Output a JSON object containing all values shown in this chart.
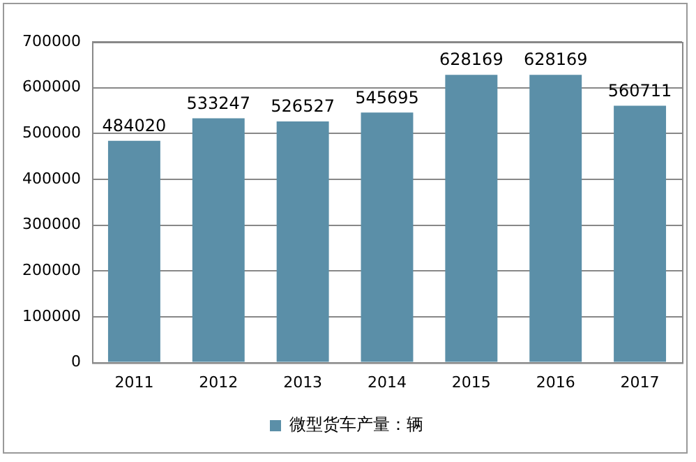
{
  "chart_data": {
    "type": "bar",
    "categories": [
      "2011",
      "2012",
      "2013",
      "2014",
      "2015",
      "2016",
      "2017"
    ],
    "series": [
      {
        "name": "微型货车产量：辆",
        "color": "#5b8fa8",
        "values": [
          484020,
          533247,
          526527,
          545695,
          628169,
          628169,
          560711
        ]
      }
    ],
    "ylim": [
      0,
      700000
    ],
    "yticks": [
      0,
      100000,
      200000,
      300000,
      400000,
      500000,
      600000,
      700000
    ],
    "grid": "y",
    "legend": "bottom",
    "data_labels": true
  }
}
